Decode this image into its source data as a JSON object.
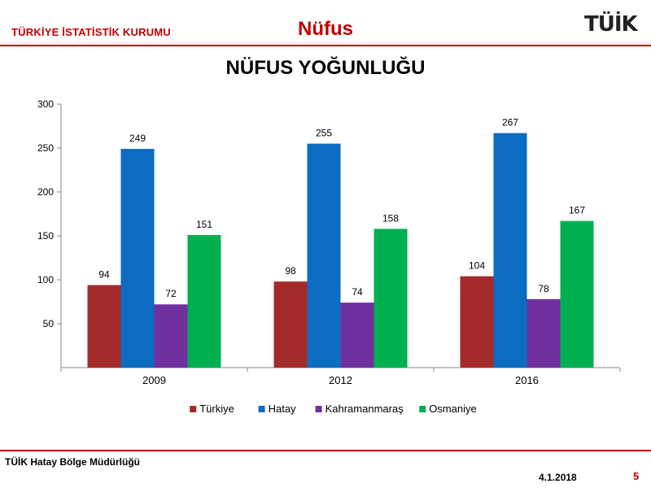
{
  "header": {
    "org_name": "TÜRKİYE İSTATİSTİK KURUMU",
    "section_title": "Nüfus",
    "logo_text": "TÜİK"
  },
  "chart_title": "NÜFUS YOĞUNLUĞU",
  "footer": {
    "office": "TÜİK Hatay Bölge Müdürlüğü",
    "date": "4.1.2018",
    "page_number": "5"
  },
  "colors": {
    "accent": "#c00000"
  },
  "chart_data": {
    "type": "bar",
    "title": "NÜFUS YOĞUNLUĞU",
    "xlabel": "",
    "ylabel": "",
    "categories": [
      "2009",
      "2012",
      "2016"
    ],
    "ylim": [
      0,
      300
    ],
    "yticks": [
      50,
      100,
      150,
      200,
      250,
      300
    ],
    "grid": false,
    "legend_position": "bottom",
    "series": [
      {
        "name": "Türkiye",
        "color": "#a52a2a",
        "values": [
          94,
          98,
          104
        ]
      },
      {
        "name": "Hatay",
        "color": "#0b6cc2",
        "values": [
          249,
          255,
          267
        ]
      },
      {
        "name": "Kahramanmaraş",
        "color": "#7030a0",
        "values": [
          72,
          74,
          78
        ]
      },
      {
        "name": "Osmaniye",
        "color": "#00b050",
        "values": [
          151,
          158,
          167
        ]
      }
    ]
  }
}
